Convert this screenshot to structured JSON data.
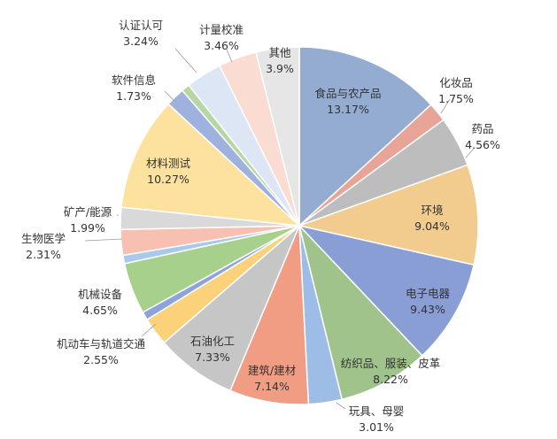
{
  "chart_data": {
    "type": "pie",
    "title": "",
    "slices": [
      {
        "name": "食品与农产品",
        "pct": "13.17%",
        "value": 13.17,
        "color": "#93acd0"
      },
      {
        "name": "化妆品",
        "pct": "1.75%",
        "value": 1.75,
        "color": "#e8a496"
      },
      {
        "name": "药品",
        "pct": "4.56%",
        "value": 4.56,
        "color": "#bdbdbd"
      },
      {
        "name": "环境",
        "pct": "9.04%",
        "value": 9.04,
        "color": "#f2cb8f"
      },
      {
        "name": "电子电器",
        "pct": "9.43%",
        "value": 9.43,
        "color": "#8a9ed6"
      },
      {
        "name": "纺织品、服装、皮革",
        "pct": "8.22%",
        "value": 8.22,
        "color": "#9fc38a"
      },
      {
        "name": "玩具、母婴",
        "pct": "3.01%",
        "value": 3.01,
        "color": "#9dbde6"
      },
      {
        "name": "建筑/建材",
        "pct": "7.14%",
        "value": 7.14,
        "color": "#f09d84"
      },
      {
        "name": "石油化工",
        "pct": "7.33%",
        "value": 7.33,
        "color": "#c6c6c6"
      },
      {
        "name": "机动车与轨道交通",
        "pct": "2.55%",
        "value": 2.55,
        "color": "#fbd279"
      },
      {
        "name": "",
        "pct": "",
        "value": 0.75,
        "color": "#8ea3dc"
      },
      {
        "name": "机械设备",
        "pct": "4.65%",
        "value": 4.65,
        "color": "#a8d08d"
      },
      {
        "name": "",
        "pct": "",
        "value": 0.75,
        "color": "#a9c8ec"
      },
      {
        "name": "生物医学",
        "pct": "2.31%",
        "value": 2.31,
        "color": "#f7c0b0"
      },
      {
        "name": "矿产/能源",
        "pct": "1.99%",
        "value": 1.99,
        "color": "#d9d9d9"
      },
      {
        "name": "材料测试",
        "pct": "10.27%",
        "value": 10.27,
        "color": "#fde19f"
      },
      {
        "name": "软件信息",
        "pct": "1.73%",
        "value": 1.73,
        "color": "#9fb2de"
      },
      {
        "name": "",
        "pct": "",
        "value": 0.75,
        "color": "#b6d7a2"
      },
      {
        "name": "认证认可",
        "pct": "3.24%",
        "value": 3.24,
        "color": "#dce6f5"
      },
      {
        "name": "计量校准",
        "pct": "3.46%",
        "value": 3.46,
        "color": "#fbdcd2"
      },
      {
        "name": "其他",
        "pct": "3.9%",
        "value": 3.9,
        "color": "#e6e6e6"
      }
    ]
  }
}
